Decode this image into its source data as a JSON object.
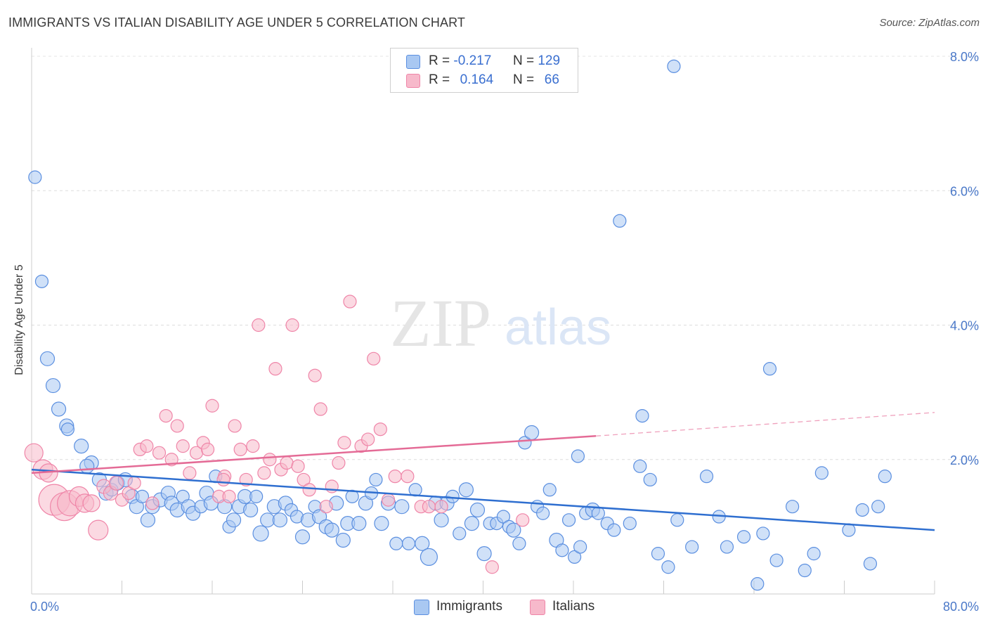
{
  "header": {
    "title": "IMMIGRANTS VS ITALIAN DISABILITY AGE UNDER 5 CORRELATION CHART",
    "source": "Source: ZipAtlas.com"
  },
  "watermark": {
    "zip": "ZIP",
    "atlas": "atlas"
  },
  "legend": {
    "r_label": "R =",
    "n_label": "N =",
    "rows": [
      {
        "r": "-0.217",
        "n": "129",
        "color": "#a9c8f2"
      },
      {
        "r": "0.164",
        "n": "66",
        "color": "#f7b9cb"
      }
    ]
  },
  "bottom_legend": [
    {
      "label": "Immigrants",
      "color": "#a9c8f2"
    },
    {
      "label": "Italians",
      "color": "#f7b9cb"
    }
  ],
  "chart_data": {
    "type": "scatter",
    "title": "IMMIGRANTS VS ITALIAN DISABILITY AGE UNDER 5 CORRELATION CHART",
    "xlabel": "",
    "ylabel": "Disability Age Under 5",
    "xlim": [
      0,
      80
    ],
    "ylim": [
      0,
      8.2
    ],
    "x_tick_labels": [
      "0.0%",
      "80.0%"
    ],
    "y_ticks": [
      2,
      4,
      6,
      8
    ],
    "y_tick_labels": [
      "2.0%",
      "4.0%",
      "6.0%",
      "8.0%"
    ],
    "grid": "horizontal dashed",
    "legend_placement": "top-center",
    "series": [
      {
        "name": "Immigrants",
        "color": "#5b8fe0",
        "fill": "#a9c8f2",
        "trend": {
          "x": [
            0,
            80
          ],
          "y": [
            1.85,
            0.95
          ],
          "style": "solid"
        },
        "points": [
          [
            0.3,
            6.2,
            9
          ],
          [
            0.9,
            4.65,
            9
          ],
          [
            1.4,
            3.5,
            10
          ],
          [
            1.9,
            3.1,
            10
          ],
          [
            2.4,
            2.75,
            10
          ],
          [
            3.1,
            2.5,
            10
          ],
          [
            3.2,
            2.45,
            9
          ],
          [
            4.4,
            2.2,
            10
          ],
          [
            5.3,
            1.95,
            10
          ],
          [
            4.9,
            1.9,
            10
          ],
          [
            6.0,
            1.7,
            10
          ],
          [
            6.6,
            1.5,
            10
          ],
          [
            7.1,
            1.55,
            9
          ],
          [
            7.6,
            1.65,
            10
          ],
          [
            8.3,
            1.7,
            10
          ],
          [
            8.9,
            1.45,
            10
          ],
          [
            9.3,
            1.3,
            10
          ],
          [
            9.8,
            1.45,
            9
          ],
          [
            10.3,
            1.1,
            10
          ],
          [
            10.7,
            1.3,
            10
          ],
          [
            11.4,
            1.4,
            10
          ],
          [
            12.1,
            1.5,
            10
          ],
          [
            12.4,
            1.35,
            10
          ],
          [
            12.9,
            1.25,
            10
          ],
          [
            13.4,
            1.45,
            9
          ],
          [
            13.9,
            1.3,
            10
          ],
          [
            14.3,
            1.2,
            10
          ],
          [
            15.0,
            1.3,
            9
          ],
          [
            15.5,
            1.5,
            10
          ],
          [
            15.9,
            1.35,
            10
          ],
          [
            16.3,
            1.75,
            9
          ],
          [
            17.1,
            1.3,
            10
          ],
          [
            17.5,
            1.0,
            9
          ],
          [
            17.9,
            1.1,
            10
          ],
          [
            18.4,
            1.3,
            10
          ],
          [
            18.9,
            1.45,
            10
          ],
          [
            19.4,
            1.25,
            10
          ],
          [
            19.9,
            1.45,
            9
          ],
          [
            20.3,
            0.9,
            11
          ],
          [
            20.9,
            1.1,
            10
          ],
          [
            21.5,
            1.3,
            10
          ],
          [
            22.0,
            1.1,
            10
          ],
          [
            22.5,
            1.35,
            10
          ],
          [
            23.0,
            1.25,
            9
          ],
          [
            23.5,
            1.15,
            9
          ],
          [
            24.0,
            0.85,
            10
          ],
          [
            24.5,
            1.1,
            10
          ],
          [
            25.1,
            1.3,
            9
          ],
          [
            25.5,
            1.15,
            10
          ],
          [
            26.1,
            1.0,
            10
          ],
          [
            26.6,
            0.95,
            10
          ],
          [
            27.0,
            1.35,
            10
          ],
          [
            27.6,
            0.8,
            10
          ],
          [
            28.0,
            1.05,
            10
          ],
          [
            28.4,
            1.45,
            9
          ],
          [
            29.0,
            1.05,
            10
          ],
          [
            29.6,
            1.35,
            10
          ],
          [
            30.1,
            1.5,
            9
          ],
          [
            30.5,
            1.7,
            9
          ],
          [
            31.0,
            1.05,
            10
          ],
          [
            31.6,
            1.35,
            10
          ],
          [
            32.3,
            0.75,
            9
          ],
          [
            32.8,
            1.3,
            10
          ],
          [
            33.4,
            0.75,
            9
          ],
          [
            34.0,
            1.55,
            9
          ],
          [
            34.6,
            0.75,
            10
          ],
          [
            35.2,
            0.55,
            12
          ],
          [
            35.8,
            1.35,
            10
          ],
          [
            36.3,
            1.1,
            10
          ],
          [
            36.8,
            1.35,
            10
          ],
          [
            37.3,
            1.45,
            9
          ],
          [
            37.9,
            0.9,
            9
          ],
          [
            38.5,
            1.55,
            10
          ],
          [
            39.0,
            1.05,
            10
          ],
          [
            39.5,
            1.25,
            10
          ],
          [
            40.1,
            0.6,
            10
          ],
          [
            40.6,
            1.05,
            9
          ],
          [
            41.2,
            1.05,
            9
          ],
          [
            41.8,
            1.15,
            9
          ],
          [
            42.3,
            1.0,
            9
          ],
          [
            42.7,
            0.95,
            10
          ],
          [
            43.2,
            0.75,
            9
          ],
          [
            43.7,
            2.25,
            9
          ],
          [
            44.3,
            2.4,
            10
          ],
          [
            44.8,
            1.3,
            9
          ],
          [
            45.3,
            1.2,
            9
          ],
          [
            45.9,
            1.55,
            9
          ],
          [
            46.5,
            0.8,
            10
          ],
          [
            47.0,
            0.65,
            9
          ],
          [
            47.6,
            1.1,
            9
          ],
          [
            48.1,
            0.55,
            9
          ],
          [
            48.6,
            0.7,
            9
          ],
          [
            49.1,
            1.2,
            9
          ],
          [
            49.7,
            1.25,
            10
          ],
          [
            50.2,
            1.2,
            9
          ],
          [
            51.0,
            1.05,
            9
          ],
          [
            51.6,
            0.95,
            9
          ],
          [
            52.1,
            5.55,
            9
          ],
          [
            53.0,
            1.05,
            9
          ],
          [
            54.1,
            2.65,
            9
          ],
          [
            54.8,
            1.7,
            9
          ],
          [
            55.5,
            0.6,
            9
          ],
          [
            56.4,
            0.4,
            9
          ],
          [
            57.2,
            1.1,
            9
          ],
          [
            58.5,
            0.7,
            9
          ],
          [
            59.8,
            1.75,
            9
          ],
          [
            60.9,
            1.15,
            9
          ],
          [
            61.6,
            0.7,
            9
          ],
          [
            63.1,
            0.85,
            9
          ],
          [
            64.3,
            0.15,
            9
          ],
          [
            64.8,
            0.9,
            9
          ],
          [
            65.4,
            3.35,
            9
          ],
          [
            66.0,
            0.5,
            9
          ],
          [
            67.4,
            1.3,
            9
          ],
          [
            68.5,
            0.35,
            9
          ],
          [
            69.3,
            0.6,
            9
          ],
          [
            70.0,
            1.8,
            9
          ],
          [
            72.4,
            0.95,
            9
          ],
          [
            73.6,
            1.25,
            9
          ],
          [
            74.3,
            0.45,
            9
          ],
          [
            75.0,
            1.3,
            9
          ],
          [
            75.6,
            1.75,
            9
          ],
          [
            56.9,
            7.85,
            9
          ],
          [
            48.4,
            2.05,
            9
          ],
          [
            53.9,
            1.9,
            9
          ]
        ]
      },
      {
        "name": "Italians",
        "color": "#ef85a8",
        "fill": "#f7b9cb",
        "trend": {
          "x": [
            0,
            50
          ],
          "y": [
            1.8,
            2.35
          ],
          "style": "solid",
          "extended": {
            "x": [
              50,
              80
            ],
            "y": [
              2.35,
              2.7
            ],
            "style": "dashed"
          }
        },
        "points": [
          [
            0.2,
            2.1,
            13
          ],
          [
            1.0,
            1.85,
            14
          ],
          [
            1.5,
            1.8,
            13
          ],
          [
            2.0,
            1.4,
            22
          ],
          [
            2.9,
            1.3,
            20
          ],
          [
            3.4,
            1.35,
            18
          ],
          [
            4.2,
            1.45,
            14
          ],
          [
            4.7,
            1.35,
            13
          ],
          [
            5.3,
            1.35,
            12
          ],
          [
            5.9,
            0.95,
            14
          ],
          [
            6.4,
            1.6,
            10
          ],
          [
            7.0,
            1.5,
            10
          ],
          [
            7.5,
            1.65,
            10
          ],
          [
            8.0,
            1.4,
            9
          ],
          [
            8.6,
            1.5,
            9
          ],
          [
            9.1,
            1.65,
            9
          ],
          [
            9.6,
            2.15,
            9
          ],
          [
            10.2,
            2.2,
            9
          ],
          [
            10.7,
            1.35,
            9
          ],
          [
            11.3,
            2.1,
            9
          ],
          [
            11.9,
            2.65,
            9
          ],
          [
            12.4,
            2.0,
            9
          ],
          [
            12.9,
            2.5,
            9
          ],
          [
            13.4,
            2.2,
            9
          ],
          [
            14.0,
            1.8,
            9
          ],
          [
            14.6,
            2.1,
            9
          ],
          [
            15.2,
            2.25,
            9
          ],
          [
            15.6,
            2.15,
            9
          ],
          [
            16.0,
            2.8,
            9
          ],
          [
            16.6,
            1.45,
            9
          ],
          [
            17.1,
            1.75,
            9
          ],
          [
            17.5,
            1.45,
            9
          ],
          [
            18.0,
            2.5,
            9
          ],
          [
            18.5,
            2.15,
            9
          ],
          [
            19.0,
            1.7,
            9
          ],
          [
            19.6,
            2.2,
            9
          ],
          [
            20.1,
            4.0,
            9
          ],
          [
            20.6,
            1.8,
            9
          ],
          [
            21.1,
            2.0,
            9
          ],
          [
            21.6,
            3.35,
            9
          ],
          [
            22.1,
            1.85,
            9
          ],
          [
            22.6,
            1.95,
            9
          ],
          [
            23.1,
            4.0,
            9
          ],
          [
            23.6,
            1.9,
            9
          ],
          [
            24.1,
            1.7,
            9
          ],
          [
            24.6,
            1.55,
            9
          ],
          [
            25.1,
            3.25,
            9
          ],
          [
            25.6,
            2.75,
            9
          ],
          [
            26.1,
            1.3,
            9
          ],
          [
            26.6,
            1.6,
            9
          ],
          [
            27.2,
            1.95,
            9
          ],
          [
            27.7,
            2.25,
            9
          ],
          [
            28.2,
            4.35,
            9
          ],
          [
            29.2,
            2.2,
            9
          ],
          [
            29.8,
            2.3,
            9
          ],
          [
            30.3,
            3.5,
            9
          ],
          [
            30.9,
            2.45,
            9
          ],
          [
            31.6,
            1.4,
            9
          ],
          [
            32.2,
            1.75,
            9
          ],
          [
            33.3,
            1.75,
            9
          ],
          [
            34.5,
            1.3,
            9
          ],
          [
            35.2,
            1.3,
            9
          ],
          [
            36.3,
            1.3,
            9
          ],
          [
            40.8,
            0.4,
            9
          ],
          [
            43.5,
            1.1,
            9
          ],
          [
            17.0,
            1.7,
            9
          ]
        ]
      }
    ]
  }
}
